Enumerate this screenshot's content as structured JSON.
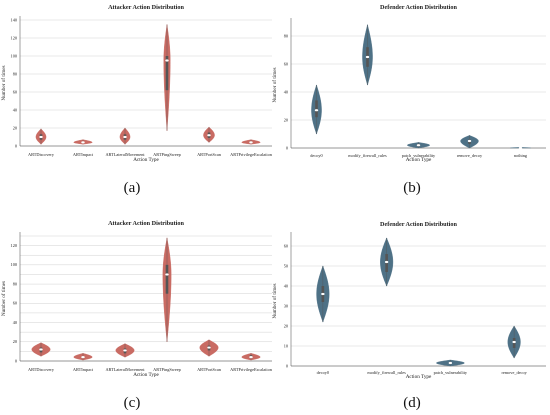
{
  "chart_data": [
    {
      "type": "violin",
      "title": "Attacker Action Distribution",
      "xlabel": "Action Type",
      "ylabel": "Number of times",
      "ylim": [
        0,
        140
      ],
      "yticks": [
        0,
        20,
        40,
        60,
        80,
        100,
        120,
        140
      ],
      "grid": true,
      "color": "#c96b63",
      "categories": [
        "ARTDiscovery",
        "ARTImpact",
        "ARTLateralMovement",
        "ARTPingSweep",
        "ARTPortScan",
        "ARTPrivilegeEscalation"
      ],
      "series": [
        {
          "min": 2,
          "q1": 7,
          "median": 10,
          "q3": 13,
          "max": 19,
          "width": 0.55
        },
        {
          "min": 2,
          "q1": 3.5,
          "median": 4,
          "q3": 5,
          "max": 7,
          "width": 1.0
        },
        {
          "min": 2,
          "q1": 7,
          "median": 10,
          "q3": 13,
          "max": 20,
          "width": 0.55
        },
        {
          "min": 17,
          "q1": 62,
          "median": 95,
          "q3": 100,
          "max": 135,
          "width": 0.35
        },
        {
          "min": 4,
          "q1": 9,
          "median": 12,
          "q3": 15,
          "max": 21,
          "width": 0.6
        },
        {
          "min": 2,
          "q1": 3,
          "median": 4,
          "q3": 5,
          "max": 7,
          "width": 1.0
        }
      ]
    },
    {
      "type": "violin",
      "title": "Defender Action Distribution",
      "xlabel": "Action Type",
      "ylabel": "Number of times",
      "ylim": [
        0,
        90
      ],
      "yticks": [
        0,
        20,
        40,
        60,
        80
      ],
      "grid": true,
      "color": "#4e7186",
      "categories": [
        "decoy0",
        "modify_firewall_rules",
        "patch_vulnerability",
        "remove_decoy",
        "nothing"
      ],
      "series": [
        {
          "min": 10,
          "q1": 22,
          "median": 27,
          "q3": 34,
          "max": 45,
          "width": 0.45
        },
        {
          "min": 45,
          "q1": 58,
          "median": 65,
          "q3": 72,
          "max": 88,
          "width": 0.45
        },
        {
          "min": 0,
          "q1": 1,
          "median": 2,
          "q3": 3,
          "max": 4,
          "width": 1.0
        },
        {
          "min": 0,
          "q1": 3,
          "median": 5,
          "q3": 6,
          "max": 9,
          "width": 0.8
        },
        {
          "min": 0,
          "q1": 0,
          "median": 0,
          "q3": 0,
          "max": 0.5,
          "width": 0.9
        }
      ]
    },
    {
      "type": "violin",
      "title": "Attacker Action Distribution",
      "xlabel": "Action Type",
      "ylabel": "Number of times",
      "ylim": [
        0,
        130
      ],
      "yticks": [
        0,
        10,
        20,
        30,
        40,
        50,
        60,
        70,
        80,
        90,
        100,
        110,
        120,
        130
      ],
      "ytick_labels": [
        "0",
        "",
        "20",
        "",
        "40",
        "",
        "60",
        "",
        "80",
        "",
        "100",
        "",
        "120",
        ""
      ],
      "grid": true,
      "color": "#c96b63",
      "categories": [
        "ARTDiscovery",
        "ARTImpact",
        "ARTLateralMovement",
        "ARTPingSweep",
        "ARTPortScan",
        "ARTPrivilegeEscalation"
      ],
      "series": [
        {
          "min": 5,
          "q1": 9,
          "median": 12,
          "q3": 14,
          "max": 19,
          "width": 1.0
        },
        {
          "min": 1,
          "q1": 3,
          "median": 4,
          "q3": 5,
          "max": 8,
          "width": 1.0
        },
        {
          "min": 4,
          "q1": 8,
          "median": 11,
          "q3": 13,
          "max": 18,
          "width": 1.0
        },
        {
          "min": 20,
          "q1": 70,
          "median": 90,
          "q3": 100,
          "max": 128,
          "width": 0.45
        },
        {
          "min": 5,
          "q1": 11,
          "median": 14,
          "q3": 16,
          "max": 22,
          "width": 1.0
        },
        {
          "min": 1,
          "q1": 3,
          "median": 4,
          "q3": 6,
          "max": 8,
          "width": 1.0
        }
      ]
    },
    {
      "type": "violin",
      "title": "Defender Action Distribution",
      "xlabel": "Action Type",
      "ylabel": "Number of times",
      "ylim": [
        0,
        65
      ],
      "yticks": [
        0,
        10,
        20,
        30,
        40,
        50,
        60
      ],
      "grid": true,
      "color": "#4e7186",
      "categories": [
        "decoy0",
        "modify_firewall_rules",
        "patch_vulnerability",
        "remove_decoy"
      ],
      "series": [
        {
          "min": 22,
          "q1": 32,
          "median": 36,
          "q3": 40,
          "max": 50,
          "width": 0.45
        },
        {
          "min": 40,
          "q1": 47,
          "median": 52,
          "q3": 56,
          "max": 64,
          "width": 0.45
        },
        {
          "min": 0,
          "q1": 1,
          "median": 1.5,
          "q3": 2,
          "max": 3,
          "width": 1.0
        },
        {
          "min": 4,
          "q1": 9,
          "median": 12,
          "q3": 14,
          "max": 20,
          "width": 0.45
        }
      ]
    }
  ],
  "captions": [
    "(a)",
    "(b)",
    "(c)",
    "(d)"
  ]
}
